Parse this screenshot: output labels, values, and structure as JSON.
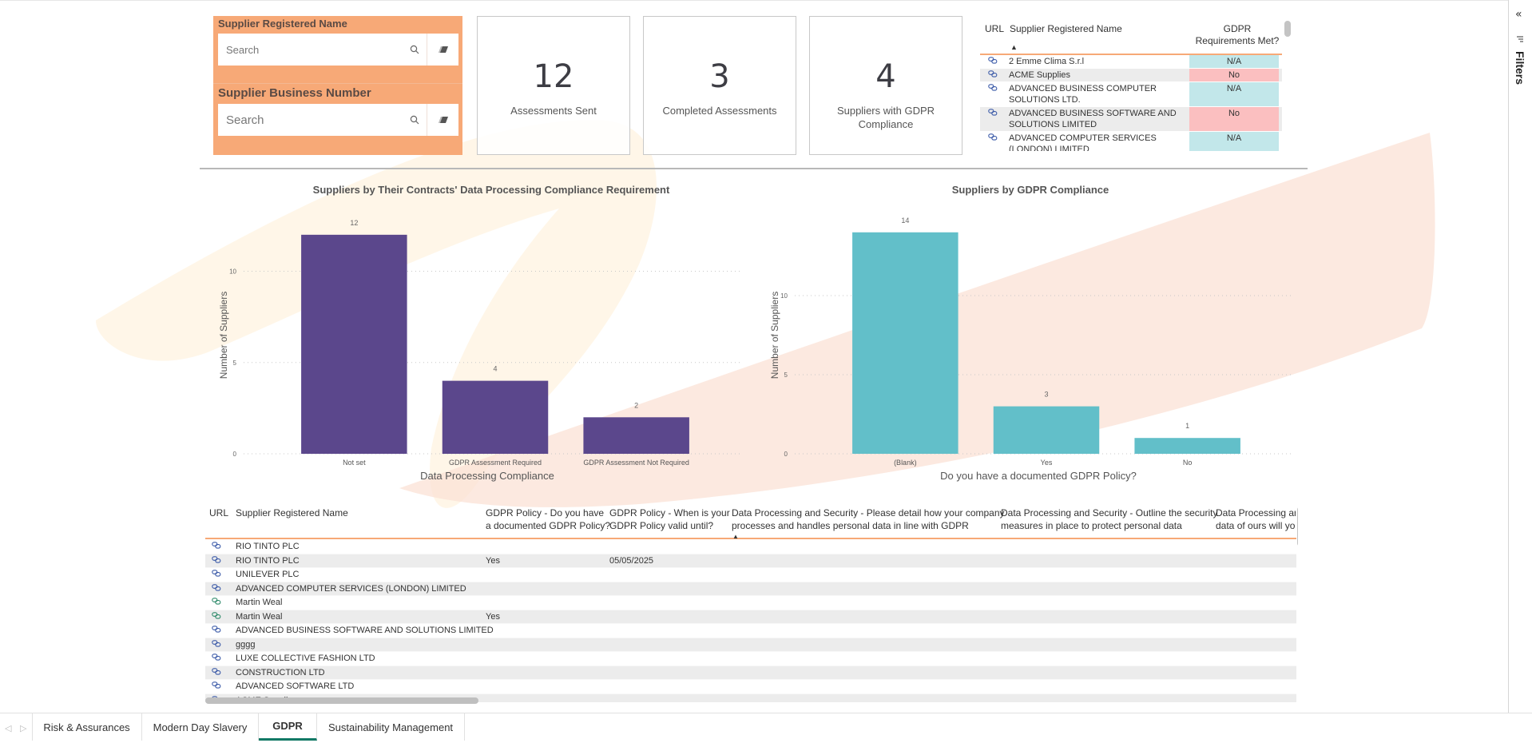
{
  "filters": {
    "name_label": "Supplier Registered Name",
    "name_placeholder": "Search",
    "business_label": "Supplier Business Number",
    "business_placeholder": "Search"
  },
  "kpis": [
    {
      "value": "12",
      "label": "Assessments Sent"
    },
    {
      "value": "3",
      "label": "Completed Assessments"
    },
    {
      "value": "4",
      "label": "Suppliers with GDPR Compliance"
    }
  ],
  "mini_table": {
    "headers": {
      "url": "URL",
      "name": "Supplier Registered Name",
      "gdpr_line1": "GDPR",
      "gdpr_line2": "Requirements Met?"
    },
    "sort_indicator": "▲",
    "rows": [
      {
        "name": "2 Emme Clima S.r.l",
        "gdpr": "N/A"
      },
      {
        "name": "ACME Supplies",
        "gdpr": "No"
      },
      {
        "name": "ADVANCED BUSINESS COMPUTER SOLUTIONS LTD.",
        "gdpr": "N/A"
      },
      {
        "name": "ADVANCED BUSINESS SOFTWARE AND SOLUTIONS LIMITED",
        "gdpr": "No"
      },
      {
        "name": "ADVANCED COMPUTER SERVICES (LONDON) LIMITED",
        "gdpr": "N/A"
      }
    ]
  },
  "colors": {
    "filter_bg": "#f7a977",
    "bar_purple": "#5b478c",
    "bar_teal": "#62bfc9",
    "gdpr_na": "#c2e7ea",
    "gdpr_no": "#fbbfc0",
    "tab_active": "#117865",
    "accent_line": "#f7a977"
  },
  "chart_data": [
    {
      "type": "bar",
      "title": "Suppliers by Their Contracts' Data Processing Compliance Requirement",
      "xlabel": "Data Processing Compliance",
      "ylabel": "Number of Suppliers",
      "categories": [
        "Not set",
        "GDPR Assessment Required",
        "GDPR Assessment Not Required"
      ],
      "values": [
        12,
        4,
        2
      ],
      "ylim": [
        0,
        13
      ],
      "yticks": [
        0,
        5,
        10
      ],
      "grid": true,
      "data_labels": true
    },
    {
      "type": "bar",
      "title": "Suppliers by GDPR Compliance",
      "xlabel": "Do you have a documented GDPR Policy?",
      "ylabel": "Number of Suppliers",
      "categories": [
        "(Blank)",
        "Yes",
        "No"
      ],
      "values": [
        14,
        3,
        1
      ],
      "ylim": [
        0,
        15
      ],
      "yticks": [
        0,
        5,
        10
      ],
      "grid": true,
      "data_labels": true
    }
  ],
  "big_table": {
    "headers": [
      {
        "line1": "URL",
        "line2": ""
      },
      {
        "line1": "Supplier Registered Name",
        "line2": ""
      },
      {
        "line1": "GDPR Policy - Do you have",
        "line2": "a documented GDPR Policy?"
      },
      {
        "line1": "GDPR Policy - When is your",
        "line2": "GDPR Policy valid until?"
      },
      {
        "line1": "Data Processing and Security - Please detail how your company",
        "line2": "processes and handles personal data in line with GDPR"
      },
      {
        "line1": "Data Processing and Security - Outline the security",
        "line2": "measures in place to protect personal data"
      },
      {
        "line1": "Data Processing and",
        "line2": "data of ours will you"
      }
    ],
    "sort_indicator": "▲",
    "rows": [
      {
        "name": "RIO TINTO PLC",
        "policy": "",
        "valid_until": ""
      },
      {
        "name": "RIO TINTO PLC",
        "policy": "Yes",
        "valid_until": "05/05/2025"
      },
      {
        "name": "UNILEVER PLC",
        "policy": "",
        "valid_until": ""
      },
      {
        "name": "ADVANCED COMPUTER SERVICES (LONDON) LIMITED",
        "policy": "",
        "valid_until": ""
      },
      {
        "name": "Martin Weal",
        "policy": "",
        "valid_until": ""
      },
      {
        "name": "Martin Weal",
        "policy": "Yes",
        "valid_until": ""
      },
      {
        "name": "ADVANCED BUSINESS SOFTWARE AND SOLUTIONS LIMITED",
        "policy": "",
        "valid_until": ""
      },
      {
        "name": "gggg",
        "policy": "",
        "valid_until": ""
      },
      {
        "name": "LUXE COLLECTIVE FASHION LTD",
        "policy": "",
        "valid_until": ""
      },
      {
        "name": "CONSTRUCTION LTD",
        "policy": "",
        "valid_until": ""
      },
      {
        "name": "ADVANCED SOFTWARE LTD",
        "policy": "",
        "valid_until": ""
      },
      {
        "name": "ACME Supplies",
        "policy": "",
        "valid_until": ""
      }
    ]
  },
  "tabs": {
    "prev": "◁",
    "next": "▷",
    "items": [
      "Risk & Assurances",
      "Modern Day Slavery",
      "GDPR",
      "Sustainability Management"
    ],
    "active": "GDPR"
  },
  "filters_pane": {
    "collapse_icon": "«",
    "label": "Filters"
  }
}
